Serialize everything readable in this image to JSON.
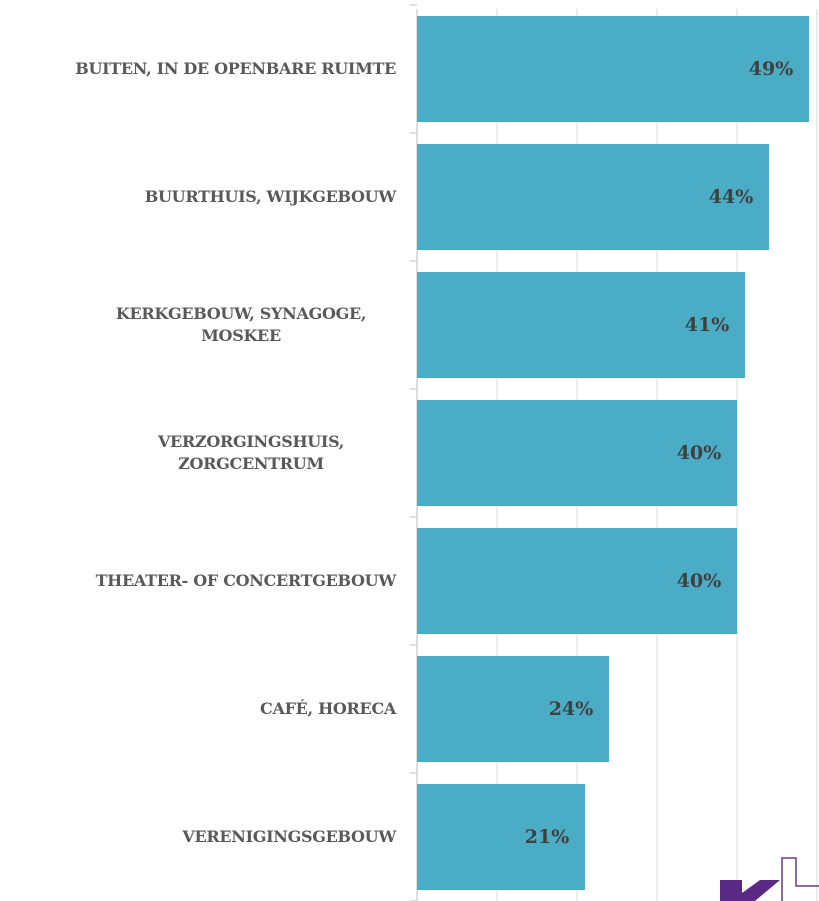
{
  "chart_data": {
    "type": "barh",
    "categories": [
      "BUITEN, IN DE OPENBARE RUIMTE",
      "BUURTHUIS, WIJKGEBOUW",
      "KERKGEBOUW, SYNAGOGE, MOSKEE",
      "VERZORGINGSHUIS, ZORGCENTRUM",
      "THEATER- OF CONCERTGEBOUW",
      "CAFÉ, HORECA",
      "VERENIGINGSGEBOUW"
    ],
    "values": [
      49,
      44,
      41,
      40,
      40,
      24,
      21
    ],
    "value_labels": [
      "49%",
      "44%",
      "41%",
      "40%",
      "40%",
      "24%",
      "21%"
    ],
    "color": "#4bacc6",
    "xlim": [
      0,
      50
    ],
    "xticks": [
      0,
      10,
      20,
      30,
      40,
      50
    ],
    "grid": true
  }
}
